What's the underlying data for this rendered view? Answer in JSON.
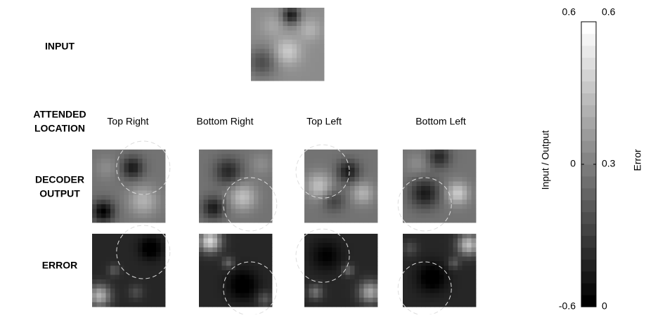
{
  "rows": {
    "input": "INPUT",
    "attended_location": [
      "ATTENDED",
      "LOCATION"
    ],
    "decoder_output": [
      "DECODER",
      "OUTPUT"
    ],
    "error": "ERROR"
  },
  "columns": [
    "Top Right",
    "Bottom Right",
    "Top Left",
    "Bottom Left"
  ],
  "colorbar": {
    "left_label": "Input / Output",
    "left_lim": [
      -0.6,
      0.6
    ],
    "left_ticks": [
      -0.6,
      0,
      0.6
    ],
    "right_label": "Error",
    "right_lim": [
      0,
      0.6
    ],
    "right_ticks": [
      0,
      0.3,
      0.6
    ]
  }
}
